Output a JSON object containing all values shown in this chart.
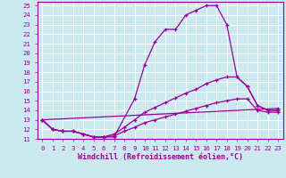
{
  "xlabel": "Windchill (Refroidissement éolien,°C)",
  "bg_color": "#cce9f0",
  "grid_color": "#ffffff",
  "line_color": "#990099",
  "xlim": [
    -0.5,
    23.5
  ],
  "ylim": [
    11,
    25.4
  ],
  "xticks": [
    0,
    1,
    2,
    3,
    4,
    5,
    6,
    7,
    8,
    9,
    10,
    11,
    12,
    13,
    14,
    15,
    16,
    17,
    18,
    19,
    20,
    21,
    22,
    23
  ],
  "yticks": [
    11,
    12,
    13,
    14,
    15,
    16,
    17,
    18,
    19,
    20,
    21,
    22,
    23,
    24,
    25
  ],
  "lines": [
    {
      "x": [
        0,
        1,
        2,
        3,
        4,
        5,
        6,
        7,
        9,
        10,
        11,
        12,
        13,
        14,
        15,
        16,
        17,
        18,
        19,
        20,
        21,
        22,
        23
      ],
      "y": [
        13,
        12,
        11.8,
        11.8,
        11.5,
        11.2,
        11.2,
        11.2,
        15.2,
        18.8,
        21.2,
        22.5,
        22.5,
        24.0,
        24.5,
        25.0,
        25.0,
        23.0,
        17.5,
        16.5,
        14.5,
        14.0,
        14.0
      ]
    },
    {
      "x": [
        0,
        1,
        2,
        3,
        4,
        5,
        6,
        7,
        8,
        9,
        10,
        11,
        12,
        13,
        14,
        15,
        16,
        17,
        18,
        19,
        20,
        21,
        22,
        23
      ],
      "y": [
        13,
        12,
        11.8,
        11.8,
        11.5,
        11.2,
        11.2,
        11.5,
        12.2,
        13.0,
        13.8,
        14.3,
        14.8,
        15.3,
        15.8,
        16.2,
        16.8,
        17.2,
        17.5,
        17.5,
        16.5,
        14.5,
        14.0,
        14.0
      ]
    },
    {
      "x": [
        0,
        1,
        2,
        3,
        4,
        5,
        6,
        7,
        8,
        9,
        10,
        11,
        12,
        13,
        14,
        15,
        16,
        17,
        18,
        19,
        20,
        21,
        22,
        23
      ],
      "y": [
        13,
        12,
        11.8,
        11.8,
        11.5,
        11.2,
        11.2,
        11.3,
        11.8,
        12.2,
        12.7,
        13.0,
        13.3,
        13.6,
        13.9,
        14.2,
        14.5,
        14.8,
        15.0,
        15.2,
        15.2,
        14.0,
        13.8,
        13.8
      ]
    },
    {
      "x": [
        0,
        23
      ],
      "y": [
        13,
        14.2
      ]
    }
  ],
  "tick_fontsize": 5.2,
  "xlabel_fontsize": 6.0,
  "spine_color": "#990099",
  "marker": "+",
  "markersize": 3.5,
  "linewidth": 0.9
}
